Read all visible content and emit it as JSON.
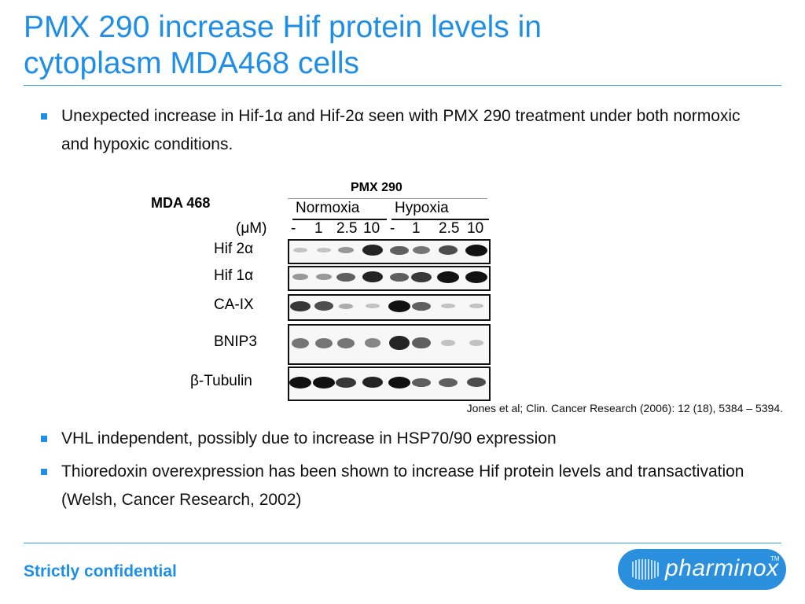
{
  "slide": {
    "title_line1": "PMX 290 increase Hif protein levels in",
    "title_line2": "cytoplasm MDA468 cells",
    "bullets_top": [
      "Unexpected increase in Hif-1α and Hif-2α seen with PMX 290 treatment under both normoxic and hypoxic conditions."
    ],
    "bullets_bottom": [
      "VHL independent, possibly due to increase in HSP70/90 expression",
      "Thioredoxin overexpression has been shown to increase Hif protein levels and transactivation (Welsh, Cancer Research, 2002)"
    ],
    "citation": "Jones et al; Clin. Cancer Research (2006): 12 (18), 5384 – 5394.",
    "footer": "Strictly confidential",
    "logo_text": "pharminox",
    "logo_tm": "TM",
    "accent_color": "#1f8ee6"
  },
  "blot": {
    "cell_line": "MDA 468",
    "treatment": "PMX 290",
    "condition_normoxia": "Normoxia",
    "condition_hypoxia": "Hypoxia",
    "unit": "(μM)",
    "doses": [
      "-",
      "1",
      "2.5",
      "10",
      "-",
      "1",
      "2.5",
      "10"
    ],
    "rows": [
      {
        "label": "Hif 2α",
        "intensity": [
          0.1,
          0.1,
          0.3,
          0.9,
          0.6,
          0.5,
          0.7,
          1.0
        ]
      },
      {
        "label": "Hif 1α",
        "intensity": [
          0.3,
          0.3,
          0.6,
          0.9,
          0.6,
          0.8,
          1.0,
          1.0
        ]
      },
      {
        "label": "CA-IX",
        "intensity": [
          0.8,
          0.7,
          0.2,
          0.1,
          1.0,
          0.6,
          0.1,
          0.1
        ]
      },
      {
        "label": "BNIP3",
        "intensity": [
          0.5,
          0.5,
          0.5,
          0.4,
          0.9,
          0.6,
          0.1,
          0.1
        ]
      },
      {
        "label": "β-Tubulin",
        "intensity": [
          1.0,
          1.0,
          0.8,
          0.9,
          1.0,
          0.6,
          0.6,
          0.7
        ]
      }
    ]
  }
}
